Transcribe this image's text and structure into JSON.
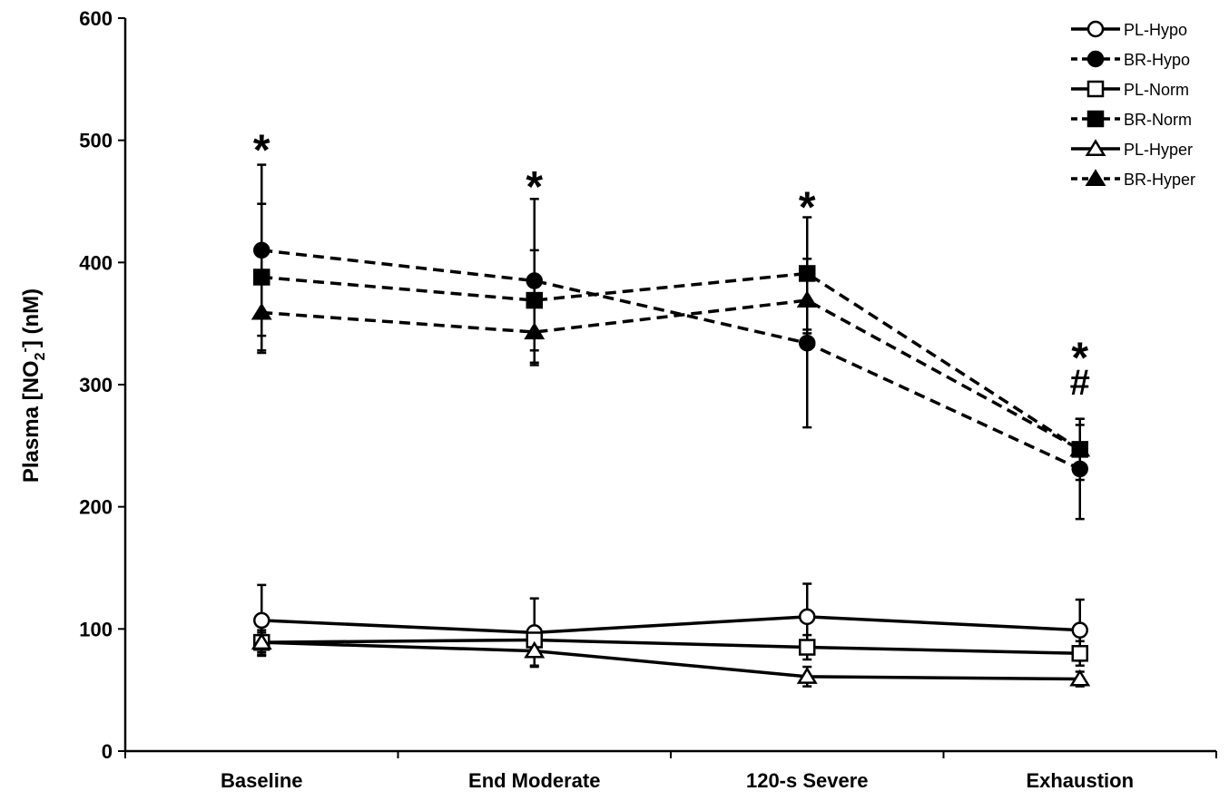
{
  "chart_data": {
    "type": "line",
    "title": "",
    "xlabel": "",
    "ylabel_parts": [
      "Plasma [NO",
      "2",
      "-",
      "] (nM)"
    ],
    "categories": [
      "Baseline",
      "End Moderate",
      "120-s Severe",
      "Exhaustion"
    ],
    "ylim": [
      0,
      600
    ],
    "yticks": [
      0,
      100,
      200,
      300,
      400,
      500,
      600
    ],
    "grid": false,
    "legend_position": "top-right",
    "series": [
      {
        "name": "PL-Hypo",
        "marker": "circle",
        "fill": "open",
        "dash": "solid",
        "values": [
          107,
          97,
          110,
          99
        ],
        "err": [
          29,
          28,
          27,
          25
        ]
      },
      {
        "name": "BR-Hypo",
        "marker": "circle",
        "fill": "filled",
        "dash": "dashed",
        "values": [
          410,
          385,
          334,
          231
        ],
        "err": [
          70,
          67,
          69,
          41
        ]
      },
      {
        "name": "PL-Norm",
        "marker": "square",
        "fill": "open",
        "dash": "solid",
        "values": [
          89,
          91,
          85,
          80
        ],
        "err": [
          10,
          10,
          10,
          10
        ]
      },
      {
        "name": "BR-Norm",
        "marker": "square",
        "fill": "filled",
        "dash": "dashed",
        "values": [
          388,
          369,
          391,
          247
        ],
        "err": [
          60,
          41,
          46,
          25
        ]
      },
      {
        "name": "PL-Hyper",
        "marker": "triangle",
        "fill": "open",
        "dash": "solid",
        "values": [
          89,
          82,
          61,
          59
        ],
        "err": [
          8,
          12,
          8,
          6
        ]
      },
      {
        "name": "BR-Hyper",
        "marker": "triangle",
        "fill": "filled",
        "dash": "dashed",
        "values": [
          359,
          343,
          369,
          247
        ],
        "err": [
          33,
          27,
          27,
          20
        ]
      }
    ],
    "annotations": [
      {
        "category_index": 0,
        "text": "*",
        "y_value": 495
      },
      {
        "category_index": 1,
        "text": "*",
        "y_value": 465
      },
      {
        "category_index": 2,
        "text": "*",
        "y_value": 448
      },
      {
        "category_index": 3,
        "text": "*",
        "y_value": 325
      },
      {
        "category_index": 3,
        "text": "#",
        "y_value": 292
      }
    ]
  }
}
